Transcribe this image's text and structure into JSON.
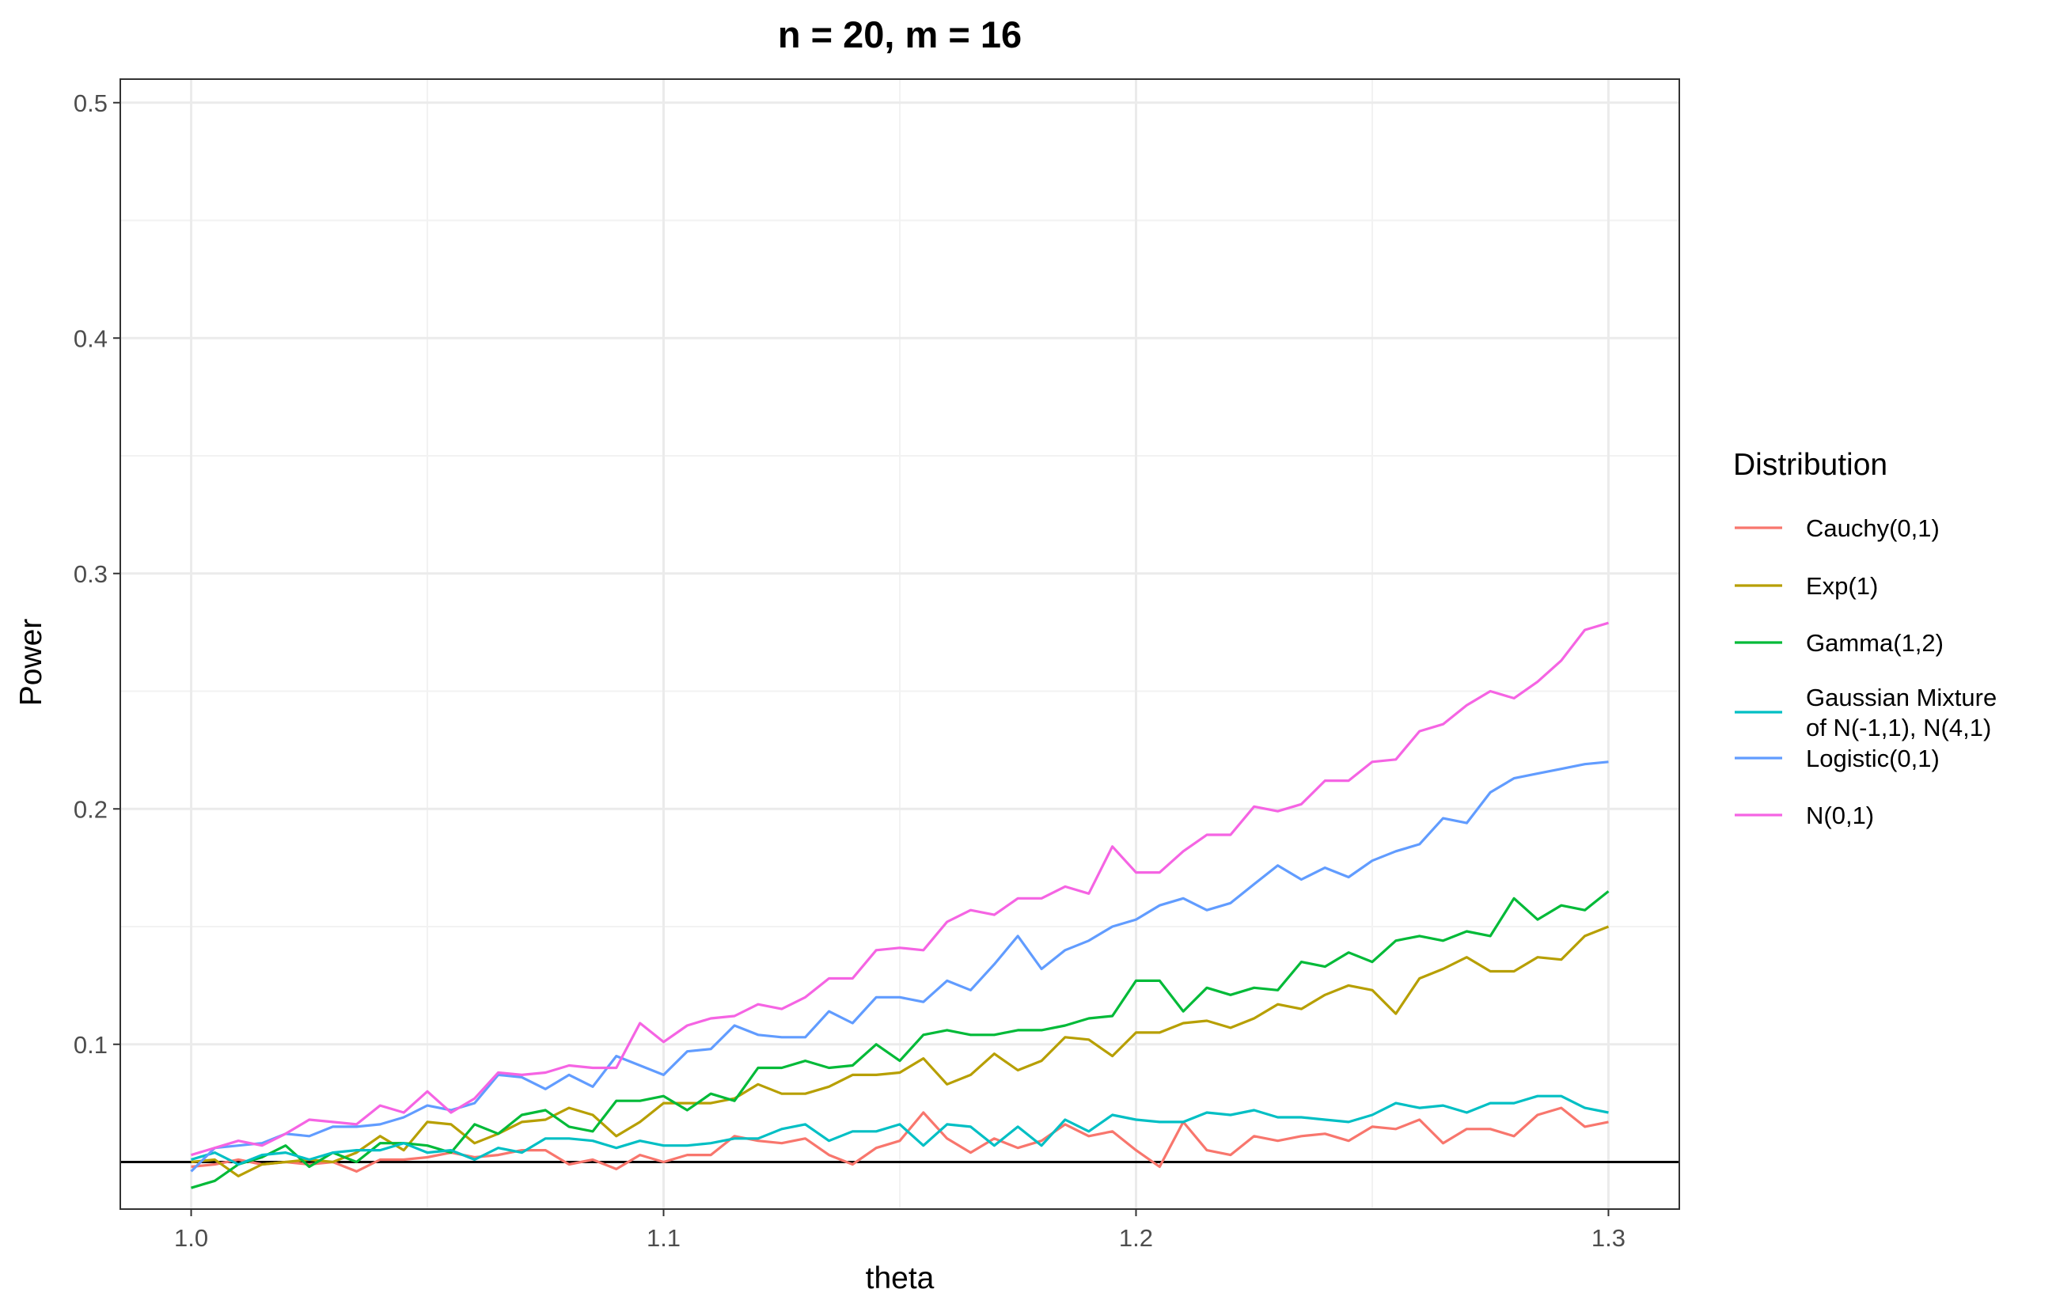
{
  "chart_data": {
    "type": "line",
    "title": "n = 20, m = 16",
    "xlabel": "theta",
    "ylabel": "Power",
    "xlim": [
      0.985,
      1.315
    ],
    "ylim": [
      0.03,
      0.51
    ],
    "x_ticks": [
      1.0,
      1.1,
      1.2,
      1.3
    ],
    "x_tick_labels": [
      "1.0",
      "1.1",
      "1.2",
      "1.3"
    ],
    "y_ticks": [
      0.1,
      0.2,
      0.3,
      0.4,
      0.5
    ],
    "y_tick_labels": [
      "0.1",
      "0.2",
      "0.3",
      "0.4",
      "0.5"
    ],
    "grid": true,
    "reference_line": 0.05,
    "legend_title": "Distribution",
    "legend_position": "right",
    "x": [
      1.0,
      1.005,
      1.01,
      1.015,
      1.02,
      1.025,
      1.03,
      1.035,
      1.04,
      1.045,
      1.05,
      1.055,
      1.06,
      1.065,
      1.07,
      1.075,
      1.08,
      1.085,
      1.09,
      1.095,
      1.1,
      1.105,
      1.11,
      1.115,
      1.12,
      1.125,
      1.13,
      1.135,
      1.14,
      1.145,
      1.15,
      1.155,
      1.16,
      1.165,
      1.17,
      1.175,
      1.18,
      1.185,
      1.19,
      1.195,
      1.2,
      1.205,
      1.21,
      1.215,
      1.22,
      1.225,
      1.23,
      1.235,
      1.24,
      1.245,
      1.25,
      1.255,
      1.26,
      1.265,
      1.27,
      1.275,
      1.28,
      1.285,
      1.29,
      1.295,
      1.3
    ],
    "series": [
      {
        "name": "Cauchy(0,1)",
        "color": "#F8766D",
        "values": [
          0.048,
          0.049,
          0.051,
          0.049,
          0.05,
          0.049,
          0.05,
          0.046,
          0.051,
          0.051,
          0.052,
          0.054,
          0.052,
          0.053,
          0.055,
          0.055,
          0.049,
          0.051,
          0.047,
          0.053,
          0.05,
          0.053,
          0.053,
          0.061,
          0.059,
          0.058,
          0.06,
          0.053,
          0.049,
          0.056,
          0.059,
          0.071,
          0.06,
          0.054,
          0.06,
          0.056,
          0.059,
          0.066,
          0.061,
          0.063,
          0.055,
          0.048,
          0.067,
          0.055,
          0.053,
          0.061,
          0.059,
          0.061,
          0.062,
          0.059,
          0.065,
          0.064,
          0.068,
          0.058,
          0.064,
          0.064,
          0.061,
          0.07,
          0.073,
          0.065,
          0.067
        ]
      },
      {
        "name": "Exp(1)",
        "color": "#B79F00",
        "values": [
          0.05,
          0.051,
          0.044,
          0.049,
          0.05,
          0.051,
          0.05,
          0.054,
          0.061,
          0.055,
          0.067,
          0.066,
          0.058,
          0.062,
          0.067,
          0.068,
          0.073,
          0.07,
          0.061,
          0.067,
          0.075,
          0.075,
          0.075,
          0.077,
          0.083,
          0.079,
          0.079,
          0.082,
          0.087,
          0.087,
          0.088,
          0.094,
          0.083,
          0.087,
          0.096,
          0.089,
          0.093,
          0.103,
          0.102,
          0.095,
          0.105,
          0.105,
          0.109,
          0.11,
          0.107,
          0.111,
          0.117,
          0.115,
          0.121,
          0.125,
          0.123,
          0.113,
          0.128,
          0.132,
          0.137,
          0.131,
          0.131,
          0.137,
          0.136,
          0.146,
          0.15
        ]
      },
      {
        "name": "Gamma(1,2)",
        "color": "#00BA38",
        "values": [
          0.039,
          0.042,
          0.049,
          0.052,
          0.057,
          0.048,
          0.054,
          0.05,
          0.058,
          0.058,
          0.057,
          0.054,
          0.066,
          0.062,
          0.07,
          0.072,
          0.065,
          0.063,
          0.076,
          0.076,
          0.078,
          0.072,
          0.079,
          0.076,
          0.09,
          0.09,
          0.093,
          0.09,
          0.091,
          0.1,
          0.093,
          0.104,
          0.106,
          0.104,
          0.104,
          0.106,
          0.106,
          0.108,
          0.111,
          0.112,
          0.127,
          0.127,
          0.114,
          0.124,
          0.121,
          0.124,
          0.123,
          0.135,
          0.133,
          0.139,
          0.135,
          0.144,
          0.146,
          0.144,
          0.148,
          0.146,
          0.162,
          0.153,
          0.159,
          0.157,
          0.165
        ]
      },
      {
        "name": "Gaussian Mixture of N(-1,1), N(4,1)",
        "name_lines": [
          "Gaussian Mixture",
          "of N(-1,1), N(4,1)"
        ],
        "color": "#00BFC4",
        "values": [
          0.051,
          0.054,
          0.049,
          0.053,
          0.054,
          0.051,
          0.054,
          0.055,
          0.055,
          0.058,
          0.054,
          0.055,
          0.051,
          0.056,
          0.054,
          0.06,
          0.06,
          0.059,
          0.056,
          0.059,
          0.057,
          0.057,
          0.058,
          0.06,
          0.06,
          0.064,
          0.066,
          0.059,
          0.063,
          0.063,
          0.066,
          0.057,
          0.066,
          0.065,
          0.057,
          0.065,
          0.057,
          0.068,
          0.063,
          0.07,
          0.068,
          0.067,
          0.067,
          0.071,
          0.07,
          0.072,
          0.069,
          0.069,
          0.068,
          0.067,
          0.07,
          0.075,
          0.073,
          0.074,
          0.071,
          0.075,
          0.075,
          0.078,
          0.078,
          0.073,
          0.071
        ]
      },
      {
        "name": "Logistic(0,1)",
        "color": "#619CFF",
        "values": [
          0.046,
          0.056,
          0.057,
          0.058,
          0.062,
          0.061,
          0.065,
          0.065,
          0.066,
          0.069,
          0.074,
          0.072,
          0.075,
          0.087,
          0.086,
          0.081,
          0.087,
          0.082,
          0.095,
          0.091,
          0.087,
          0.097,
          0.098,
          0.108,
          0.104,
          0.103,
          0.103,
          0.114,
          0.109,
          0.12,
          0.12,
          0.118,
          0.127,
          0.123,
          0.134,
          0.146,
          0.132,
          0.14,
          0.144,
          0.15,
          0.153,
          0.159,
          0.162,
          0.157,
          0.16,
          0.168,
          0.176,
          0.17,
          0.175,
          0.171,
          0.178,
          0.182,
          0.185,
          0.196,
          0.194,
          0.207,
          0.213,
          0.215,
          0.217,
          0.219,
          0.22
        ]
      },
      {
        "name": "N(0,1)",
        "color": "#F564E3",
        "values": [
          0.053,
          0.056,
          0.059,
          0.057,
          0.062,
          0.068,
          0.067,
          0.066,
          0.074,
          0.071,
          0.08,
          0.071,
          0.077,
          0.088,
          0.087,
          0.088,
          0.091,
          0.09,
          0.09,
          0.109,
          0.101,
          0.108,
          0.111,
          0.112,
          0.117,
          0.115,
          0.12,
          0.128,
          0.128,
          0.14,
          0.141,
          0.14,
          0.152,
          0.157,
          0.155,
          0.162,
          0.162,
          0.167,
          0.164,
          0.184,
          0.173,
          0.173,
          0.182,
          0.189,
          0.189,
          0.201,
          0.199,
          0.202,
          0.212,
          0.212,
          0.22,
          0.221,
          0.233,
          0.236,
          0.244,
          0.25,
          0.247,
          0.254,
          0.263,
          0.276,
          0.279
        ]
      }
    ]
  }
}
